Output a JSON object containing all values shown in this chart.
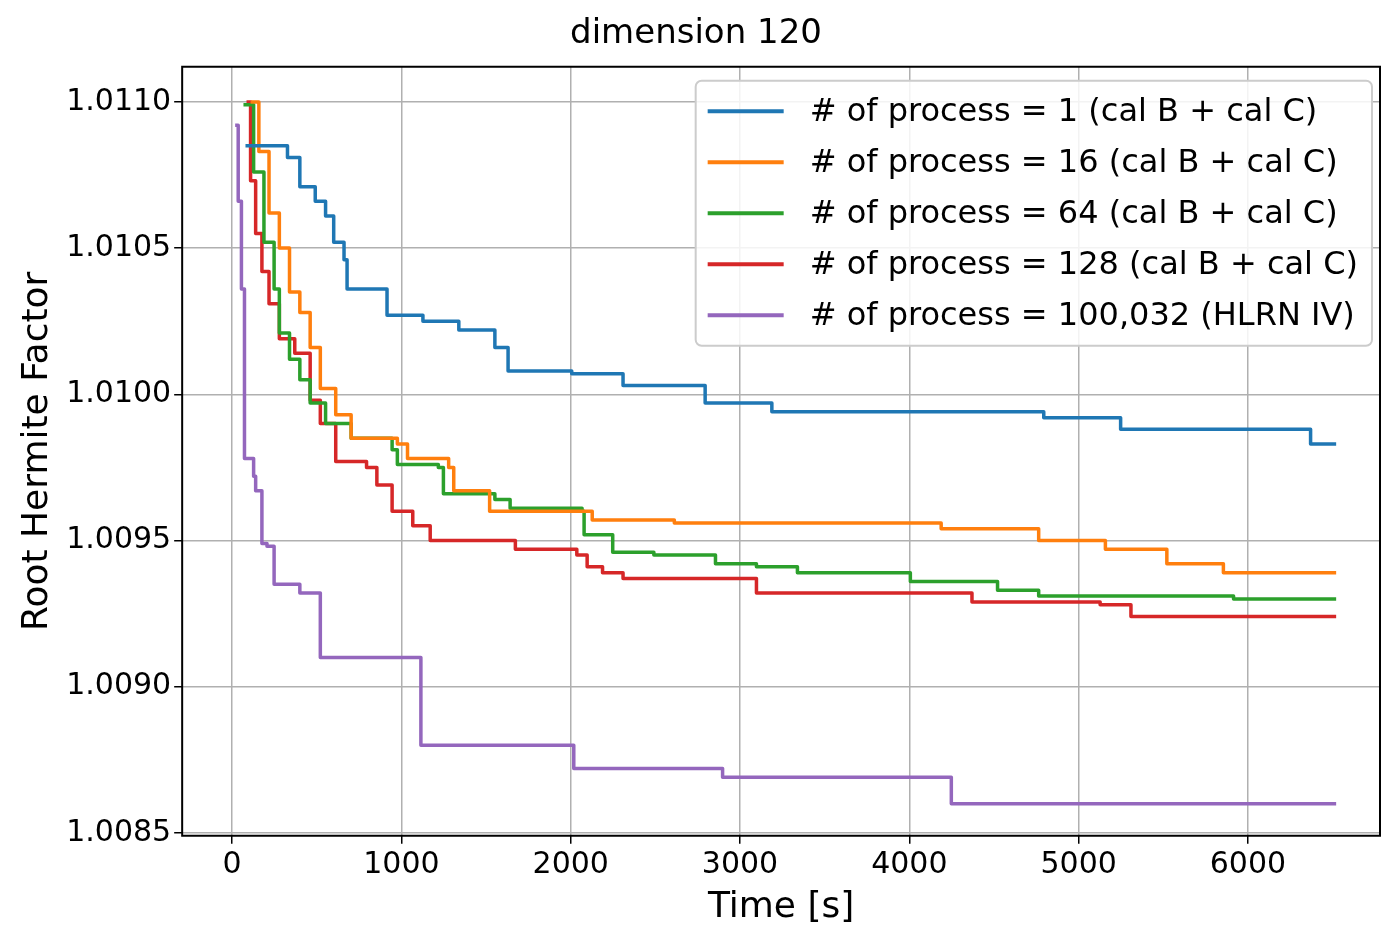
{
  "chart_data": {
    "type": "step",
    "title": "dimension 120",
    "xlabel": "Time [s]",
    "ylabel": "Root Hermite Factor",
    "xlim": [
      -295,
      6780
    ],
    "xticks": [
      0,
      1000,
      2000,
      3000,
      4000,
      5000,
      6000
    ],
    "ylim": [
      1.00849,
      1.01112
    ],
    "yticks": [
      {
        "value": 1.0085,
        "label": "1.0085"
      },
      {
        "value": 1.009,
        "label": "1.0090"
      },
      {
        "value": 1.0095,
        "label": "1.0095"
      },
      {
        "value": 1.01,
        "label": "1.0100"
      },
      {
        "value": 1.0105,
        "label": "1.0105"
      },
      {
        "value": 1.011,
        "label": "1.0110"
      }
    ],
    "grid": true,
    "line_style": "solid",
    "legend": "top right",
    "series": [
      {
        "name": "# of process = 1 (cal B + cal C)",
        "color": "#1f77b4",
        "x": [
          79,
          327,
          400,
          491,
          552,
          600,
          661,
          679,
          915,
          1127,
          1339,
          1552,
          1630,
          2006,
          2309,
          2794,
          3188,
          4794,
          5248,
          6370,
          6521
        ],
        "values": [
          1.01085,
          1.01081,
          1.01071,
          1.01066,
          1.01061,
          1.01052,
          1.01046,
          1.01036,
          1.01027,
          1.01025,
          1.01022,
          1.01016,
          1.01008,
          1.01007,
          1.01003,
          1.00997,
          1.00994,
          1.00992,
          1.00988,
          1.00983,
          1.00983
        ]
      },
      {
        "name": "# of process = 16 (cal B + cal C)",
        "color": "#ff7f0e",
        "x": [
          109,
          158,
          218,
          279,
          339,
          400,
          461,
          521,
          612,
          703,
          976,
          1036,
          1279,
          1309,
          1521,
          2127,
          2612,
          4188,
          4764,
          5158,
          5521,
          5855,
          6521
        ],
        "values": [
          1.011,
          1.01083,
          1.01062,
          1.0105,
          1.01035,
          1.01028,
          1.01016,
          1.01002,
          1.00993,
          1.00985,
          1.00983,
          1.00978,
          1.00975,
          1.00967,
          1.0096,
          1.00957,
          1.00956,
          1.00954,
          1.0095,
          1.00947,
          1.00942,
          1.00939,
          1.00939
        ]
      },
      {
        "name": "# of process = 64 (cal B + cal C)",
        "color": "#2ca02c",
        "x": [
          67,
          127,
          188,
          248,
          279,
          339,
          400,
          461,
          552,
          703,
          945,
          976,
          1218,
          1248,
          1552,
          1642,
          2067,
          2079,
          2248,
          2491,
          2855,
          3097,
          3339,
          4006,
          4521,
          4764,
          5915,
          6521
        ],
        "values": [
          1.01099,
          1.01076,
          1.01052,
          1.01036,
          1.01021,
          1.01012,
          1.01005,
          1.00997,
          1.0099,
          1.00985,
          1.00981,
          1.00976,
          1.00975,
          1.00966,
          1.00964,
          1.00961,
          1.0096,
          1.00952,
          1.00946,
          1.00945,
          1.00942,
          1.00941,
          1.00939,
          1.00936,
          1.00933,
          1.00931,
          1.0093,
          1.0093
        ]
      },
      {
        "name": "# of process = 128 (cal B + cal C)",
        "color": "#d62728",
        "x": [
          85,
          109,
          139,
          176,
          218,
          279,
          370,
          461,
          521,
          612,
          794,
          855,
          945,
          1067,
          1170,
          1673,
          2036,
          2097,
          2188,
          2309,
          3097,
          4370,
          5127,
          5309,
          6521
        ],
        "values": [
          1.011,
          1.01073,
          1.01055,
          1.01042,
          1.01031,
          1.01019,
          1.01014,
          1.00998,
          1.0099,
          1.00977,
          1.00975,
          1.00969,
          1.0096,
          1.00955,
          1.0095,
          1.00947,
          1.00945,
          1.00941,
          1.00939,
          1.00937,
          1.00932,
          1.00929,
          1.00928,
          1.00924,
          1.00924
        ]
      },
      {
        "name": "# of process = 100,032 (HLRN IV)",
        "color": "#9467bd",
        "x": [
          18,
          36,
          55,
          73,
          127,
          139,
          176,
          206,
          248,
          400,
          521,
          1115,
          2018,
          2897,
          4248,
          6521
        ],
        "values": [
          1.01092,
          1.01066,
          1.01036,
          1.00978,
          1.00972,
          1.00967,
          1.00949,
          1.00948,
          1.00935,
          1.00932,
          1.0091,
          1.0088,
          1.00872,
          1.00869,
          1.0086,
          1.0086
        ]
      }
    ]
  }
}
